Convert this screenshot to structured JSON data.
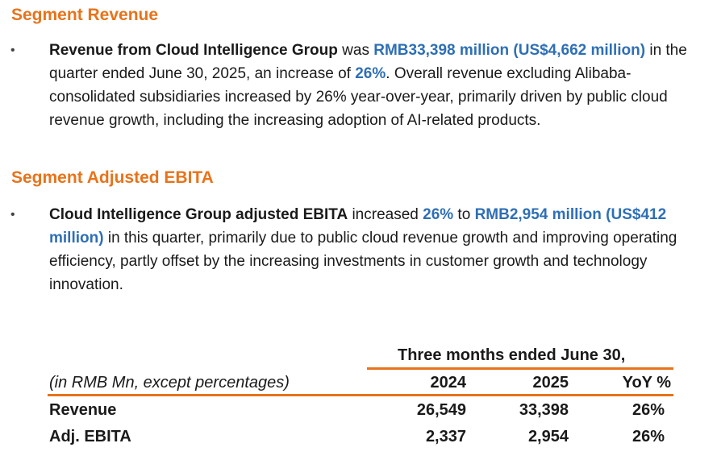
{
  "segment_revenue": {
    "heading": "Segment Revenue",
    "bullet": "•",
    "parts": [
      {
        "text": "Revenue from Cloud Intelligence Group",
        "style": "b"
      },
      {
        "text": " was ",
        "style": ""
      },
      {
        "text": "RMB33,398 million (US$4,662 million)",
        "style": "blue"
      },
      {
        "text": " in the quarter ended June 30, 2025, an increase of ",
        "style": ""
      },
      {
        "text": "26%",
        "style": "blue"
      },
      {
        "text": ". Overall revenue excluding Alibaba-consolidated subsidiaries increased by 26% year-over-year, primarily driven by public cloud revenue growth, including the increasing adoption of AI-related products.",
        "style": ""
      }
    ]
  },
  "segment_ebita": {
    "heading": "Segment Adjusted EBITA",
    "bullet": "•",
    "parts": [
      {
        "text": "Cloud Intelligence Group adjusted EBITA",
        "style": "b"
      },
      {
        "text": " increased ",
        "style": ""
      },
      {
        "text": "26%",
        "style": "blue"
      },
      {
        "text": " to ",
        "style": ""
      },
      {
        "text": "RMB2,954 million (US$412 million)",
        "style": "blue"
      },
      {
        "text": " in this quarter, primarily due to public cloud revenue growth and improving operating efficiency, partly offset by the increasing investments in customer growth and technology innovation.",
        "style": ""
      }
    ]
  },
  "table": {
    "period_header": "Three months ended June 30,",
    "units_label": "(in RMB Mn, except percentages)",
    "col_2024": "2024",
    "col_2025": "2025",
    "col_yoy": "YoY %",
    "rows": [
      {
        "label": "Revenue",
        "v2024": "26,549",
        "v2025": "33,398",
        "yoy": "26%"
      },
      {
        "label": "Adj. EBITA",
        "v2024": "2,337",
        "v2025": "2,954",
        "yoy": "26%"
      }
    ]
  },
  "colors": {
    "accent": "#e8731a",
    "highlight": "#2e6fb5"
  }
}
